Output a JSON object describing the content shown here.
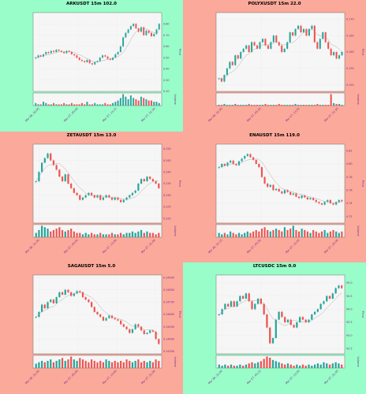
{
  "colors": {
    "up": "#26a69a",
    "down": "#ef5350",
    "green_bg": "#98fdc8",
    "red_bg": "#fba99a",
    "tick": "#7a2a8a",
    "ma": "#9a9a9a"
  },
  "chart_data": [
    {
      "type": "candlestick",
      "title": "ARKUSDT 15m 102.0",
      "background": "green",
      "ylabel": "Price",
      "volume_label": "Volume",
      "y_ticks": [
        "0.80",
        "0.70",
        "0.60",
        "0.50",
        "0.40",
        "0.30",
        "0.20"
      ],
      "ylim": [
        0.2,
        0.9
      ],
      "x_ticks": [
        "Mar 26, 20:45",
        "Mar 27, 05:00",
        "Mar 27, 13:15",
        "Mar 27, 21:30"
      ],
      "close": [
        0.5,
        0.52,
        0.51,
        0.53,
        0.55,
        0.54,
        0.56,
        0.55,
        0.57,
        0.56,
        0.55,
        0.54,
        0.56,
        0.55,
        0.53,
        0.52,
        0.5,
        0.48,
        0.47,
        0.46,
        0.48,
        0.45,
        0.44,
        0.46,
        0.47,
        0.5,
        0.52,
        0.51,
        0.49,
        0.48,
        0.5,
        0.53,
        0.55,
        0.6,
        0.68,
        0.72,
        0.75,
        0.78,
        0.8,
        0.76,
        0.73,
        0.77,
        0.7,
        0.74,
        0.72,
        0.69,
        0.71,
        0.75,
        0.8
      ],
      "volume": [
        2,
        1,
        1,
        3,
        2,
        1,
        1,
        2,
        1,
        1,
        1,
        2,
        1,
        1,
        2,
        1,
        1,
        1,
        2,
        1,
        3,
        1,
        1,
        2,
        1,
        1,
        1,
        2,
        1,
        1,
        2,
        3,
        4,
        6,
        9,
        7,
        5,
        8,
        6,
        5,
        4,
        7,
        6,
        5,
        4,
        4,
        3,
        3,
        2
      ]
    },
    {
      "type": "candlestick",
      "title": "POLYXUSDT 15m 22.0",
      "background": "red",
      "ylabel": "Price",
      "volume_label": "Volume",
      "y_ticks": [
        "0.170",
        "0.165",
        "0.160",
        "0.155",
        "0.150"
      ],
      "ylim": [
        0.148,
        0.172
      ],
      "x_ticks": [
        "Mar 26, 21:30",
        "Mar 27, 05:30",
        "Mar 27, 13:30",
        "Mar 27, 21:30"
      ],
      "close": [
        0.152,
        0.151,
        0.153,
        0.155,
        0.157,
        0.156,
        0.159,
        0.158,
        0.16,
        0.161,
        0.162,
        0.16,
        0.163,
        0.162,
        0.161,
        0.163,
        0.164,
        0.162,
        0.161,
        0.163,
        0.165,
        0.163,
        0.162,
        0.16,
        0.161,
        0.163,
        0.166,
        0.165,
        0.167,
        0.168,
        0.166,
        0.167,
        0.165,
        0.167,
        0.168,
        0.163,
        0.161,
        0.164,
        0.166,
        0.163,
        0.161,
        0.159,
        0.16,
        0.158,
        0.159,
        0.16
      ],
      "volume": [
        1,
        1,
        2,
        1,
        1,
        1,
        2,
        1,
        1,
        1,
        1,
        2,
        1,
        1,
        1,
        1,
        1,
        2,
        1,
        1,
        1,
        1,
        2,
        1,
        1,
        1,
        1,
        1,
        2,
        1,
        1,
        1,
        1,
        1,
        1,
        1,
        2,
        1,
        1,
        1,
        1,
        14,
        3,
        2,
        2,
        1
      ]
    },
    {
      "type": "candlestick",
      "title": "ZETAUSDT 15m 13.0",
      "background": "red",
      "ylabel": "Price",
      "volume_label": "Volume",
      "y_ticks": [
        "0.250",
        "0.245",
        "0.240",
        "0.235",
        "0.230",
        "0.225",
        "0.220"
      ],
      "ylim": [
        0.218,
        0.252
      ],
      "x_ticks": [
        "Mar 26, 21:00",
        "Mar 27, 05:00",
        "Mar 27, 13:00",
        "Mar 27, 21:00"
      ],
      "close": [
        0.236,
        0.24,
        0.244,
        0.246,
        0.248,
        0.245,
        0.243,
        0.241,
        0.238,
        0.236,
        0.239,
        0.235,
        0.233,
        0.231,
        0.23,
        0.228,
        0.229,
        0.23,
        0.231,
        0.23,
        0.229,
        0.23,
        0.228,
        0.229,
        0.23,
        0.229,
        0.228,
        0.229,
        0.228,
        0.227,
        0.228,
        0.229,
        0.23,
        0.231,
        0.232,
        0.235,
        0.237,
        0.236,
        0.238,
        0.237,
        0.236,
        0.235,
        0.233
      ],
      "volume": [
        3,
        5,
        8,
        7,
        6,
        4,
        5,
        6,
        7,
        5,
        4,
        5,
        6,
        4,
        3,
        3,
        2,
        3,
        2,
        3,
        2,
        2,
        3,
        2,
        2,
        2,
        3,
        2,
        2,
        3,
        2,
        3,
        3,
        4,
        3,
        4,
        5,
        3,
        4,
        3,
        3,
        2,
        3
      ]
    },
    {
      "type": "candlestick",
      "title": "ENAUSDT 15m 119.0",
      "background": "red",
      "ylabel": "Price",
      "volume_label": "Volume",
      "y_ticks": [
        "0.82",
        "0.80",
        "0.78",
        "0.76",
        "0.74",
        "0.72"
      ],
      "ylim": [
        0.71,
        0.83
      ],
      "x_ticks": [
        "Mar 26, 21:15",
        "Mar 27, 05:30",
        "Mar 27, 13:45",
        "Mar 27, 22:00"
      ],
      "close": [
        0.795,
        0.8,
        0.797,
        0.802,
        0.805,
        0.8,
        0.798,
        0.804,
        0.808,
        0.812,
        0.815,
        0.81,
        0.806,
        0.8,
        0.795,
        0.78,
        0.77,
        0.765,
        0.768,
        0.76,
        0.762,
        0.758,
        0.755,
        0.76,
        0.757,
        0.753,
        0.755,
        0.75,
        0.748,
        0.752,
        0.749,
        0.746,
        0.748,
        0.745,
        0.742,
        0.74,
        0.738,
        0.742,
        0.745,
        0.74,
        0.738,
        0.742,
        0.745,
        0.743
      ],
      "volume": [
        3,
        2,
        3,
        2,
        4,
        3,
        2,
        3,
        2,
        3,
        4,
        3,
        4,
        5,
        4,
        6,
        7,
        5,
        4,
        5,
        6,
        5,
        4,
        7,
        5,
        6,
        8,
        5,
        4,
        6,
        5,
        4,
        3,
        5,
        4,
        3,
        4,
        5,
        3,
        4,
        5,
        4,
        3,
        4
      ]
    },
    {
      "type": "candlestick",
      "title": "SAGAUSDT 15m 5.0",
      "background": "red",
      "ylabel": "Price",
      "volume_label": "Volume",
      "y_ticks": [
        "0.14900",
        "0.14800",
        "0.14700",
        "0.14600",
        "0.14500",
        "0.14400",
        "0.14300"
      ],
      "ylim": [
        0.1428,
        0.1492
      ],
      "x_ticks": [
        "Mar 26, 21:00",
        "Mar 27, 05:00",
        "Mar 27, 13:00",
        "Mar 27, 21:00"
      ],
      "close": [
        0.1458,
        0.1462,
        0.1468,
        0.1465,
        0.147,
        0.1472,
        0.1469,
        0.1474,
        0.1478,
        0.1476,
        0.148,
        0.1478,
        0.1475,
        0.1477,
        0.1479,
        0.1478,
        0.1474,
        0.1472,
        0.147,
        0.1466,
        0.1462,
        0.146,
        0.1458,
        0.1455,
        0.1457,
        0.1459,
        0.1457,
        0.1456,
        0.1455,
        0.1452,
        0.145,
        0.1448,
        0.1445,
        0.1448,
        0.1452,
        0.145,
        0.1447,
        0.1444,
        0.1445,
        0.1447,
        0.1446,
        0.144,
        0.1436
      ],
      "volume": [
        3,
        4,
        5,
        4,
        5,
        6,
        4,
        5,
        6,
        7,
        5,
        6,
        8,
        6,
        5,
        7,
        6,
        5,
        4,
        6,
        5,
        4,
        5,
        4,
        6,
        5,
        4,
        5,
        4,
        5,
        4,
        6,
        5,
        4,
        5,
        6,
        4,
        5,
        4,
        5,
        4,
        6,
        5
      ]
    },
    {
      "type": "candlestick",
      "title": "LTCUSDC 15m 0.0",
      "background": "green",
      "ylabel": "Price",
      "volume_label": "Volume",
      "y_ticks": [
        "95.0",
        "94.5",
        "94.0",
        "93.5",
        "93.0",
        "92.5"
      ],
      "ylim": [
        92.3,
        95.3
      ],
      "x_ticks": [
        "Mar 26, 21:00",
        "Mar 27, 05:15",
        "Mar 27, 13:30",
        "Mar 27, 21:45"
      ],
      "close": [
        93.8,
        94.0,
        94.2,
        94.1,
        94.3,
        94.1,
        94.3,
        94.5,
        94.4,
        94.6,
        94.3,
        94.0,
        94.2,
        94.4,
        94.2,
        93.8,
        93.3,
        92.7,
        92.9,
        93.6,
        93.9,
        93.7,
        93.5,
        93.6,
        93.4,
        93.3,
        93.5,
        93.7,
        93.6,
        93.5,
        93.6,
        93.8,
        93.9,
        94.0,
        94.2,
        94.3,
        94.5,
        94.4,
        94.6,
        94.8,
        94.9,
        94.8
      ],
      "volume": [
        3,
        2,
        3,
        2,
        3,
        2,
        2,
        3,
        2,
        3,
        4,
        5,
        4,
        5,
        6,
        8,
        10,
        9,
        7,
        6,
        5,
        4,
        3,
        4,
        3,
        2,
        3,
        2,
        3,
        2,
        3,
        2,
        3,
        4,
        3,
        5,
        4,
        3,
        4,
        5,
        4,
        3
      ]
    }
  ]
}
